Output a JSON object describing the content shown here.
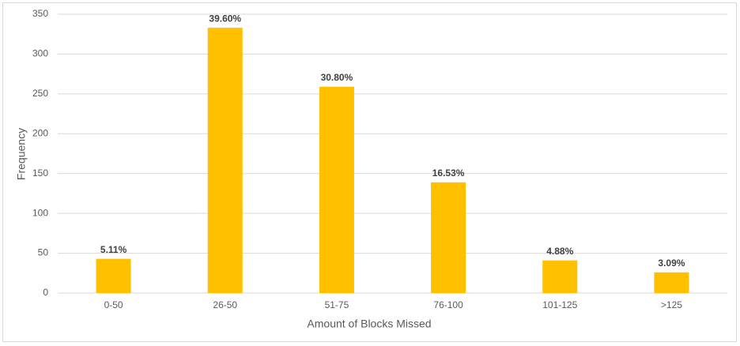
{
  "chart_data": {
    "type": "bar",
    "x_label": "Amount of Blocks Missed",
    "y_label": "Frequency",
    "categories": [
      "0-50",
      "26-50",
      "51-75",
      "76-100",
      "101-125",
      ">125"
    ],
    "values": [
      43,
      333,
      259,
      139,
      41,
      26
    ],
    "shares": [
      {
        "value": 5.11,
        "label": "5.11%"
      },
      {
        "value": 39.6,
        "label": "39.60%"
      },
      {
        "value": 30.8,
        "label": "30.80%"
      },
      {
        "value": 16.53,
        "label": "16.53%"
      },
      {
        "value": 4.88,
        "label": "4.88%"
      },
      {
        "value": 3.09,
        "label": "3.09%"
      }
    ],
    "color": "#ffc000",
    "ylim": [
      0,
      350
    ],
    "yticks": [
      0,
      50,
      100,
      150,
      200,
      250,
      300,
      350
    ],
    "grid": true
  }
}
